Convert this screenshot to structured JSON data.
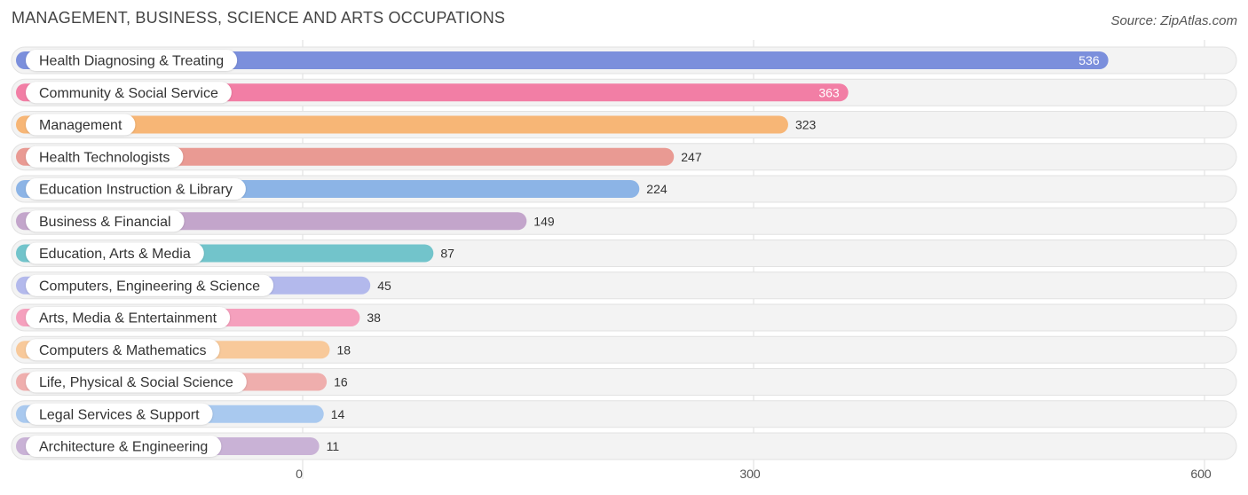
{
  "chart_data": {
    "type": "bar",
    "orientation": "horizontal",
    "title": "MANAGEMENT, BUSINESS, SCIENCE AND ARTS OCCUPATIONS",
    "source": "Source: ZipAtlas.com",
    "categories": [
      "Health Diagnosing & Treating",
      "Community & Social Service",
      "Management",
      "Health Technologists",
      "Education Instruction & Library",
      "Business & Financial",
      "Education, Arts & Media",
      "Computers, Engineering & Science",
      "Arts, Media & Entertainment",
      "Computers & Mathematics",
      "Life, Physical & Social Science",
      "Legal Services & Support",
      "Architecture & Engineering"
    ],
    "values": [
      536,
      363,
      323,
      247,
      224,
      149,
      87,
      45,
      38,
      18,
      16,
      14,
      11
    ],
    "value_labels": [
      "536",
      "363",
      "323",
      "247",
      "224",
      "149",
      "87",
      "45",
      "38",
      "18",
      "16",
      "14",
      "11"
    ],
    "colors": [
      "#7b8fdc",
      "#f27ea5",
      "#f7b676",
      "#e99a93",
      "#8cb4e6",
      "#c3a5cb",
      "#72c4cb",
      "#b3b9ec",
      "#f5a0bd",
      "#f8c99a",
      "#efaead",
      "#a9c9ef",
      "#c9b2d6"
    ],
    "xlim": [
      0,
      600
    ],
    "ticks": [
      0,
      300,
      600
    ],
    "tick_labels": [
      "0",
      "300",
      "600"
    ],
    "grid": true,
    "legend": "none"
  }
}
